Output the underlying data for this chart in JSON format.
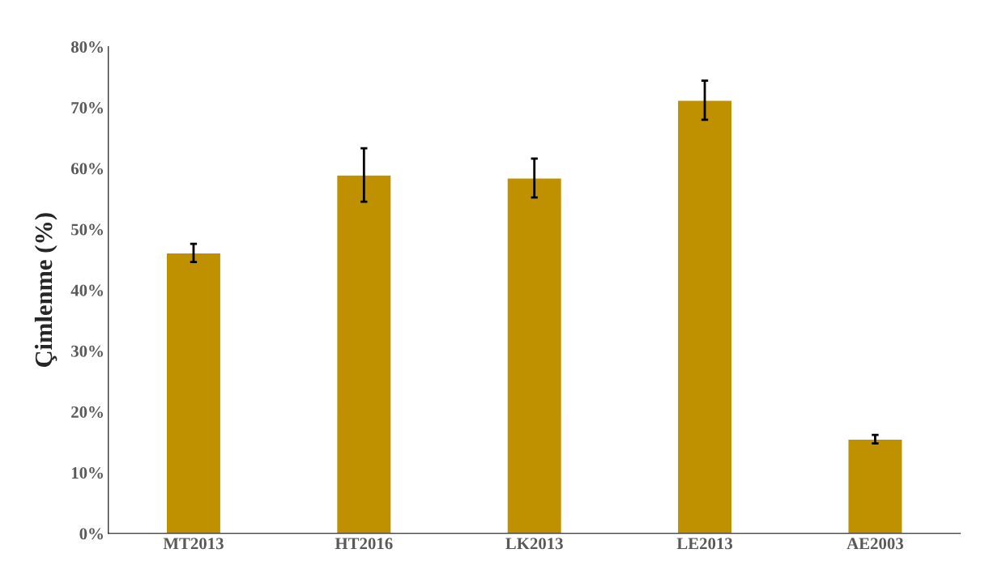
{
  "chart_data": {
    "type": "bar",
    "ylabel": "Çimlenme (%)",
    "categories": [
      "MT2013",
      "HT2016",
      "LK2013",
      "LE2013",
      "AE2003"
    ],
    "values": [
      46.1,
      58.9,
      58.4,
      71.2,
      15.5
    ],
    "errors": [
      1.5,
      4.4,
      3.2,
      3.2,
      0.7
    ],
    "color": "#bf9000",
    "ylim": [
      0,
      80
    ],
    "yticks": [
      {
        "value": 0,
        "label": "0%"
      },
      {
        "value": 10,
        "label": "10%"
      },
      {
        "value": 20,
        "label": "20%"
      },
      {
        "value": 30,
        "label": "30%"
      },
      {
        "value": 40,
        "label": "40%"
      },
      {
        "value": 50,
        "label": "50%"
      },
      {
        "value": 60,
        "label": "60%"
      },
      {
        "value": 70,
        "label": "70%"
      },
      {
        "value": 80,
        "label": "80%"
      }
    ],
    "grid": false,
    "legend": false
  }
}
